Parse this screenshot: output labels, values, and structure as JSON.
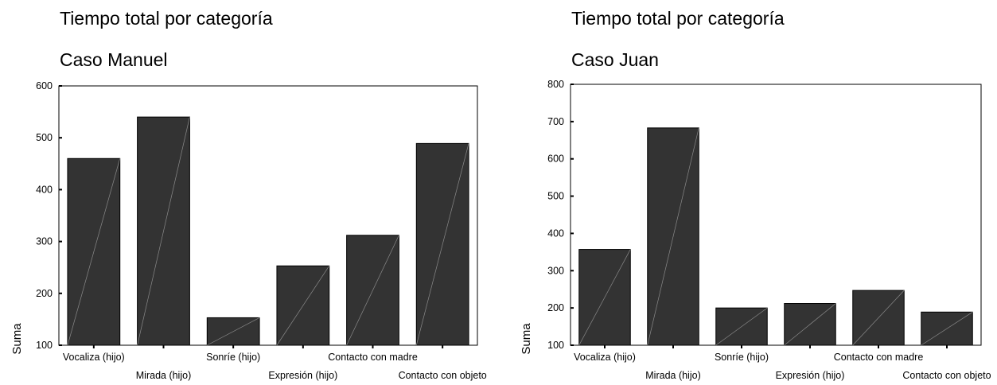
{
  "chart_data": [
    {
      "type": "bar",
      "title": "Tiempo total por categoría",
      "subtitle": "Caso Manuel",
      "ylabel": "Suma",
      "xlabel": "",
      "ylim": [
        100,
        600
      ],
      "yticks": [
        100,
        200,
        300,
        400,
        500,
        600
      ],
      "categories": [
        "Vocaliza (hijo)",
        "Mirada (hijo)",
        "Sonríe (hijo)",
        "Expresión (hijo)",
        "Contacto con madre",
        "Contacto con objeto"
      ],
      "values": [
        460,
        540,
        153,
        253,
        312,
        489
      ],
      "grid": false,
      "colors": {
        "bar": "#333333",
        "diagonal": "#8a8a8a"
      }
    },
    {
      "type": "bar",
      "title": "Tiempo total por categoría",
      "subtitle": "Caso Juan",
      "ylabel": "Suma",
      "xlabel": "",
      "ylim": [
        100,
        800
      ],
      "yticks": [
        100,
        200,
        300,
        400,
        500,
        600,
        700,
        800
      ],
      "categories": [
        "Vocaliza (hijo)",
        "Mirada (hijo)",
        "Sonríe (hijo)",
        "Expresión (hijo)",
        "Contacto con madre",
        "Contacto con objeto"
      ],
      "values": [
        357,
        683,
        200,
        212,
        247,
        189
      ],
      "grid": false,
      "colors": {
        "bar": "#333333",
        "diagonal": "#8a8a8a"
      }
    }
  ]
}
